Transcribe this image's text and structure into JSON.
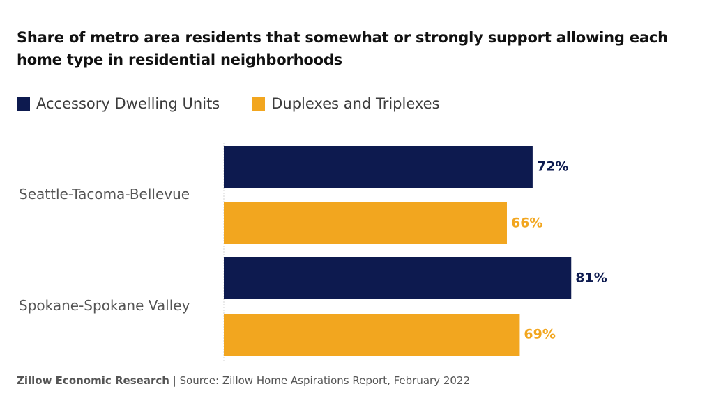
{
  "title": "Share of metro area residents that somewhat or strongly support allowing each home type in residential neighborhoods",
  "colors": {
    "adu": "#0d1a4f",
    "duplex": "#f2a61f"
  },
  "chart_data": {
    "type": "bar",
    "orientation": "horizontal",
    "title": "Share of metro area residents that somewhat or strongly support allowing each home type in residential neighborhoods",
    "categories": [
      "Seattle-Tacoma-Bellevue",
      "Spokane-Spokane Valley"
    ],
    "series": [
      {
        "name": "Accessory Dwelling Units",
        "values": [
          72,
          81
        ],
        "labels": [
          "72%",
          "81%"
        ]
      },
      {
        "name": "Duplexes and Triplexes",
        "values": [
          66,
          69
        ],
        "labels": [
          "66%",
          "69%"
        ]
      }
    ],
    "xlim": [
      0,
      100
    ],
    "grid": false,
    "legend_position": "top-left"
  },
  "footer": {
    "org": "Zillow Economic Research",
    "source": " | Source: Zillow Home Aspirations Report, February 2022"
  }
}
